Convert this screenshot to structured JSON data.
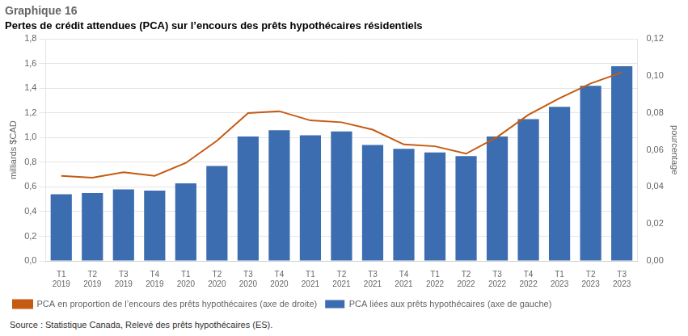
{
  "chart_data": {
    "type": "bar",
    "title": "Graphique 16",
    "subtitle": "Pertes de crédit attendues (PCA) sur l’encours des prêts hypothécaires résidentiels",
    "ylabel": "milliards $CAD",
    "y2label": "pourcentage",
    "annotations": [
      "Source : Statistique Canada, Relevé des prêts hypothécaires (ES)."
    ],
    "categories": [
      "T1\n2019",
      "T2\n2019",
      "T3\n2019",
      "T4\n2019",
      "T1\n2020",
      "T2\n2020",
      "T3\n2020",
      "T4\n2020",
      "T1\n2021",
      "T2\n2021",
      "T3\n2021",
      "T4\n2021",
      "T1\n2022",
      "T2\n2022",
      "T3\n2022",
      "T4\n2022",
      "T1\n2023",
      "T2\n2023",
      "T3\n2023"
    ],
    "series": [
      {
        "name": "PCA liées aux prêts hypothécaires (axe de gauche)",
        "type": "bar",
        "color": "#3C6DB0",
        "values": [
          0.54,
          0.55,
          0.58,
          0.57,
          0.63,
          0.77,
          1.01,
          1.06,
          1.02,
          1.05,
          0.94,
          0.91,
          0.88,
          0.85,
          1.01,
          1.15,
          1.25,
          1.42,
          1.58
        ]
      },
      {
        "name": "PCA en proportion de l’encours des prêts hypothécaires (axe de droite)",
        "type": "line",
        "color": "#C55A11",
        "axis": "y2",
        "marker": "none",
        "values": [
          0.046,
          0.045,
          0.048,
          0.046,
          0.053,
          0.065,
          0.08,
          0.081,
          0.076,
          0.075,
          0.071,
          0.063,
          0.062,
          0.058,
          0.067,
          0.079,
          0.088,
          0.096,
          0.102
        ]
      }
    ],
    "ylim": [
      0.0,
      1.8
    ],
    "yticks": [
      {
        "value": 0.0,
        "label": "0,0"
      },
      {
        "value": 0.2,
        "label": "0,2"
      },
      {
        "value": 0.4,
        "label": "0,4"
      },
      {
        "value": 0.6,
        "label": "0,6"
      },
      {
        "value": 0.8,
        "label": "0,8"
      },
      {
        "value": 1.0,
        "label": "1,0"
      },
      {
        "value": 1.2,
        "label": "1,2"
      },
      {
        "value": 1.4,
        "label": "1,4"
      },
      {
        "value": 1.6,
        "label": "1,6"
      },
      {
        "value": 1.8,
        "label": "1,8"
      }
    ],
    "y2lim": [
      0.0,
      0.12
    ],
    "y2ticks": [
      {
        "value": 0.0,
        "label": "0,00"
      },
      {
        "value": 0.02,
        "label": "0,02"
      },
      {
        "value": 0.04,
        "label": "0,04"
      },
      {
        "value": 0.06,
        "label": "0,06"
      },
      {
        "value": 0.08,
        "label": "0,08"
      },
      {
        "value": 0.1,
        "label": "0,10"
      },
      {
        "value": 0.12,
        "label": "0,12"
      }
    ],
    "grid": true,
    "legend": "bottom"
  }
}
